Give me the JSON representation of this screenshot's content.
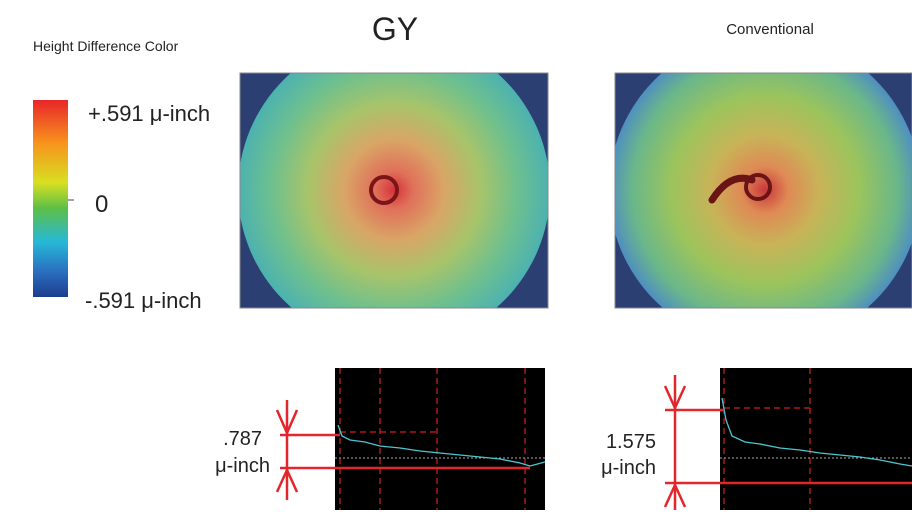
{
  "legend": {
    "title": "Height Difference Color",
    "max": "+.591 μ-inch",
    "mid": "0",
    "min": "-.591 μ-inch"
  },
  "panels": [
    {
      "title": "GY",
      "profile": {
        "value": ".787",
        "unit": "μ-inch"
      }
    },
    {
      "title": "Conventional",
      "profile": {
        "value": "1.575",
        "unit": "μ-inch"
      }
    }
  ]
}
